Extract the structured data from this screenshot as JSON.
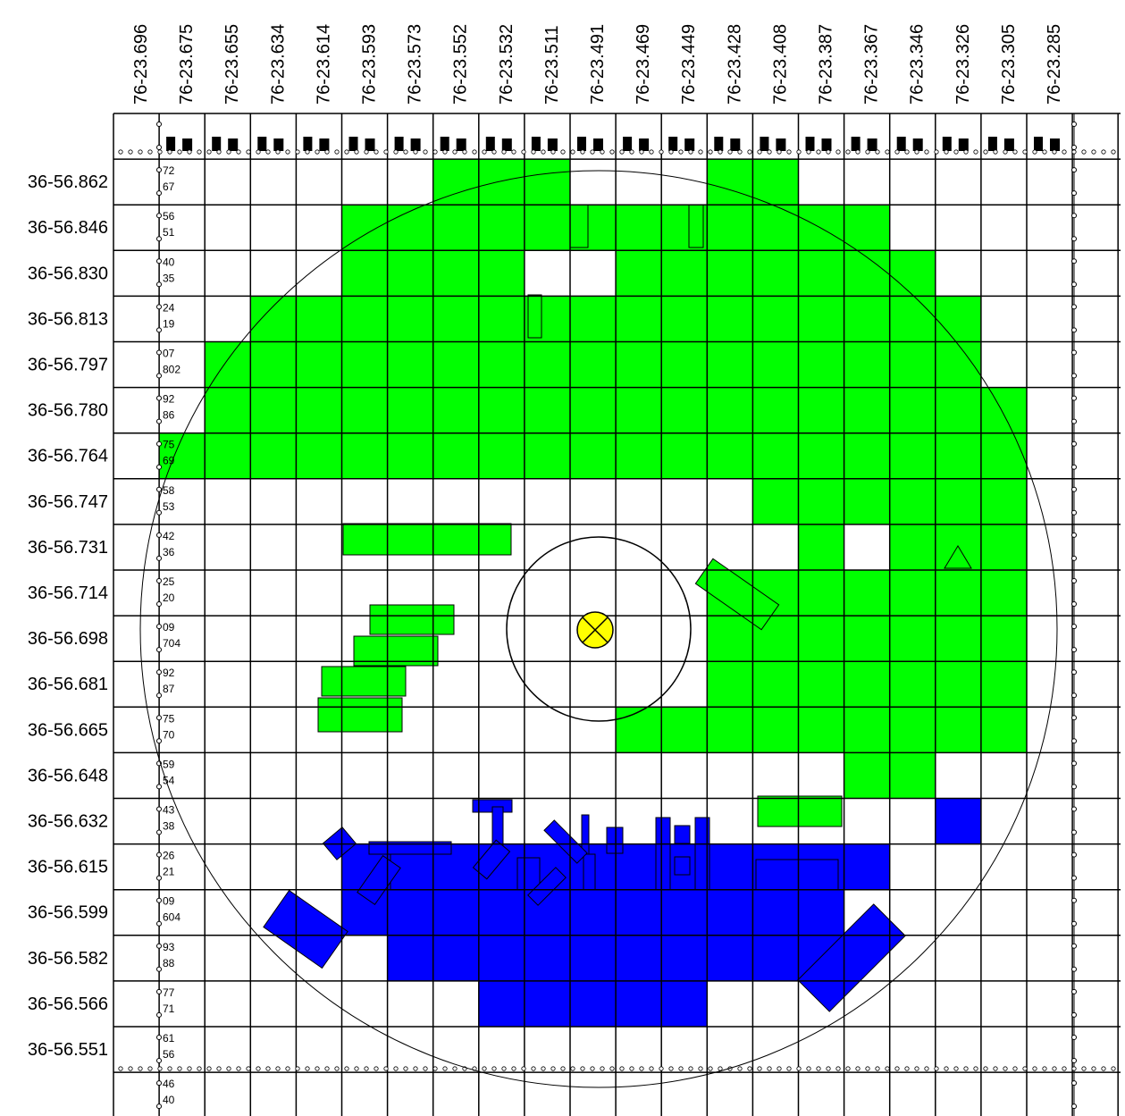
{
  "map": {
    "longitude_labels": [
      "76-23.696",
      "76-23.675",
      "76-23.655",
      "76-23.634",
      "76-23.614",
      "76-23.593",
      "76-23.573",
      "76-23.552",
      "76-23.532",
      "76-23.511",
      "76-23.491",
      "76-23.469",
      "76-23.449",
      "76-23.428",
      "76-23.408",
      "76-23.387",
      "76-23.367",
      "76-23.346",
      "76-23.326",
      "76-23.305",
      "76-23.285"
    ],
    "latitude_labels": [
      "36-56.862",
      "36-56.846",
      "36-56.830",
      "36-56.813",
      "36-56.797",
      "36-56.780",
      "36-56.764",
      "36-56.747",
      "36-56.731",
      "36-56.714",
      "36-56.698",
      "36-56.681",
      "36-56.665",
      "36-56.648",
      "36-56.632",
      "36-56.615",
      "36-56.599",
      "36-56.582",
      "36-56.566",
      "36-56.551"
    ],
    "row_sublabels": [
      [
        "72",
        "67"
      ],
      [
        "56",
        "51"
      ],
      [
        "40",
        "35"
      ],
      [
        "24",
        "19"
      ],
      [
        "07",
        "802"
      ],
      [
        "92",
        "86"
      ],
      [
        "75",
        "69"
      ],
      [
        "58",
        "53"
      ],
      [
        "42",
        "36"
      ],
      [
        "25",
        "20"
      ],
      [
        "09",
        "704"
      ],
      [
        "92",
        "87"
      ],
      [
        "75",
        "70"
      ],
      [
        "59",
        "54"
      ],
      [
        "43",
        "38"
      ],
      [
        "26",
        "21"
      ],
      [
        "09",
        "604"
      ],
      [
        "93",
        "88"
      ],
      [
        "77",
        "71"
      ],
      [
        "61",
        "56"
      ],
      [
        "46",
        "40"
      ]
    ],
    "colors": {
      "green_area": "#00ff00",
      "blue_area": "#0000ff",
      "center_marker": "#ffff00",
      "grid": "#000000"
    },
    "center_marker_icon": "crossed-circle-icon",
    "triangle_marker_icon": "triangle-icon",
    "green_cells": [
      [
        1,
        7
      ],
      [
        1,
        8
      ],
      [
        1,
        9
      ],
      [
        1,
        13
      ],
      [
        1,
        14
      ],
      [
        2,
        5
      ],
      [
        2,
        6
      ],
      [
        2,
        7
      ],
      [
        2,
        8
      ],
      [
        2,
        9
      ],
      [
        2,
        10
      ],
      [
        2,
        11
      ],
      [
        2,
        12
      ],
      [
        2,
        13
      ],
      [
        2,
        14
      ],
      [
        2,
        15
      ],
      [
        2,
        16
      ],
      [
        3,
        5
      ],
      [
        3,
        6
      ],
      [
        3,
        7
      ],
      [
        3,
        8
      ],
      [
        3,
        11
      ],
      [
        3,
        12
      ],
      [
        3,
        13
      ],
      [
        3,
        14
      ],
      [
        3,
        15
      ],
      [
        3,
        16
      ],
      [
        3,
        17
      ],
      [
        4,
        3
      ],
      [
        4,
        4
      ],
      [
        4,
        5
      ],
      [
        4,
        6
      ],
      [
        4,
        7
      ],
      [
        4,
        8
      ],
      [
        4,
        9
      ],
      [
        4,
        10
      ],
      [
        4,
        11
      ],
      [
        4,
        12
      ],
      [
        4,
        13
      ],
      [
        4,
        14
      ],
      [
        4,
        15
      ],
      [
        4,
        16
      ],
      [
        4,
        17
      ],
      [
        4,
        18
      ],
      [
        5,
        2
      ],
      [
        5,
        3
      ],
      [
        5,
        4
      ],
      [
        5,
        5
      ],
      [
        5,
        6
      ],
      [
        5,
        7
      ],
      [
        5,
        8
      ],
      [
        5,
        9
      ],
      [
        5,
        10
      ],
      [
        5,
        11
      ],
      [
        5,
        12
      ],
      [
        5,
        13
      ],
      [
        5,
        14
      ],
      [
        5,
        15
      ],
      [
        5,
        16
      ],
      [
        5,
        17
      ],
      [
        5,
        18
      ],
      [
        6,
        2
      ],
      [
        6,
        3
      ],
      [
        6,
        4
      ],
      [
        6,
        5
      ],
      [
        6,
        6
      ],
      [
        6,
        7
      ],
      [
        6,
        8
      ],
      [
        6,
        9
      ],
      [
        6,
        10
      ],
      [
        6,
        11
      ],
      [
        6,
        12
      ],
      [
        6,
        13
      ],
      [
        6,
        14
      ],
      [
        6,
        15
      ],
      [
        6,
        16
      ],
      [
        6,
        17
      ],
      [
        6,
        18
      ],
      [
        6,
        19
      ],
      [
        7,
        1
      ],
      [
        7,
        2
      ],
      [
        7,
        3
      ],
      [
        7,
        4
      ],
      [
        7,
        5
      ],
      [
        7,
        6
      ],
      [
        7,
        7
      ],
      [
        7,
        8
      ],
      [
        7,
        9
      ],
      [
        7,
        10
      ],
      [
        7,
        11
      ],
      [
        7,
        12
      ],
      [
        7,
        13
      ],
      [
        7,
        14
      ],
      [
        7,
        15
      ],
      [
        7,
        16
      ],
      [
        7,
        17
      ],
      [
        7,
        18
      ],
      [
        7,
        19
      ],
      [
        8,
        14
      ],
      [
        8,
        15
      ],
      [
        8,
        16
      ],
      [
        8,
        17
      ],
      [
        8,
        18
      ],
      [
        8,
        19
      ],
      [
        9,
        15
      ],
      [
        9,
        17
      ],
      [
        9,
        18
      ],
      [
        9,
        19
      ],
      [
        10,
        13
      ],
      [
        10,
        14
      ],
      [
        10,
        15
      ],
      [
        10,
        16
      ],
      [
        10,
        17
      ],
      [
        10,
        18
      ],
      [
        10,
        19
      ],
      [
        11,
        13
      ],
      [
        11,
        14
      ],
      [
        11,
        15
      ],
      [
        11,
        16
      ],
      [
        11,
        17
      ],
      [
        11,
        18
      ],
      [
        11,
        19
      ],
      [
        12,
        13
      ],
      [
        12,
        14
      ],
      [
        12,
        15
      ],
      [
        12,
        16
      ],
      [
        12,
        17
      ],
      [
        12,
        18
      ],
      [
        12,
        19
      ],
      [
        13,
        11
      ],
      [
        13,
        12
      ],
      [
        13,
        13
      ],
      [
        13,
        14
      ],
      [
        13,
        15
      ],
      [
        13,
        16
      ],
      [
        13,
        17
      ],
      [
        13,
        18
      ],
      [
        13,
        19
      ],
      [
        14,
        16
      ],
      [
        14,
        17
      ]
    ],
    "blue_cells": [
      [
        15,
        18
      ],
      [
        16,
        5
      ],
      [
        16,
        6
      ],
      [
        16,
        7
      ],
      [
        16,
        8
      ],
      [
        16,
        9
      ],
      [
        16,
        10
      ],
      [
        16,
        11
      ],
      [
        16,
        12
      ],
      [
        16,
        13
      ],
      [
        16,
        14
      ],
      [
        16,
        15
      ],
      [
        16,
        16
      ],
      [
        17,
        5
      ],
      [
        17,
        6
      ],
      [
        17,
        7
      ],
      [
        17,
        8
      ],
      [
        17,
        9
      ],
      [
        17,
        10
      ],
      [
        17,
        11
      ],
      [
        17,
        12
      ],
      [
        17,
        13
      ],
      [
        17,
        14
      ],
      [
        17,
        15
      ],
      [
        18,
        6
      ],
      [
        18,
        7
      ],
      [
        18,
        8
      ],
      [
        18,
        9
      ],
      [
        18,
        10
      ],
      [
        18,
        11
      ],
      [
        18,
        12
      ],
      [
        18,
        13
      ],
      [
        18,
        14
      ],
      [
        18,
        15
      ],
      [
        19,
        8
      ],
      [
        19,
        9
      ],
      [
        19,
        10
      ],
      [
        19,
        11
      ],
      [
        19,
        12
      ]
    ]
  }
}
